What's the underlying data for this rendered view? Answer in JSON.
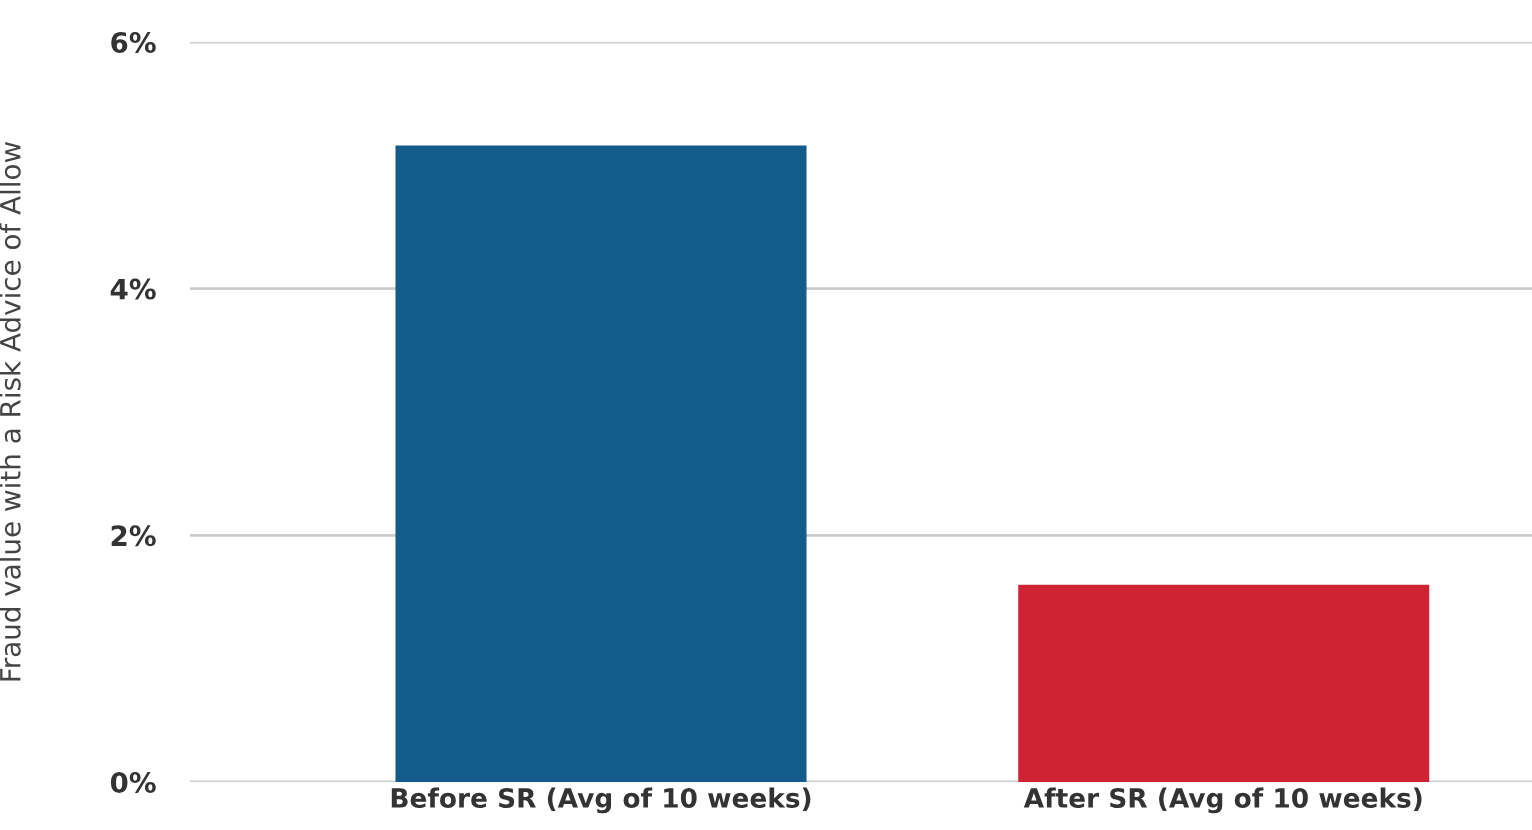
{
  "chart_data": {
    "type": "bar",
    "ylabel": "Fraud value with a Risk Advice of Allow",
    "categories": [
      "Before SR (Avg of 10 weeks)",
      "After SR (Avg of 10 weeks)"
    ],
    "values": [
      5.16,
      1.6
    ],
    "colors": [
      "#125b8a",
      "#cf2233"
    ],
    "ylim": [
      0,
      6
    ],
    "yticks": [
      {
        "value": 0,
        "label": "0%"
      },
      {
        "value": 2,
        "label": "2%"
      },
      {
        "value": 4,
        "label": "4%"
      },
      {
        "value": 6,
        "label": "6%"
      }
    ],
    "grid": "y",
    "legend": false
  }
}
